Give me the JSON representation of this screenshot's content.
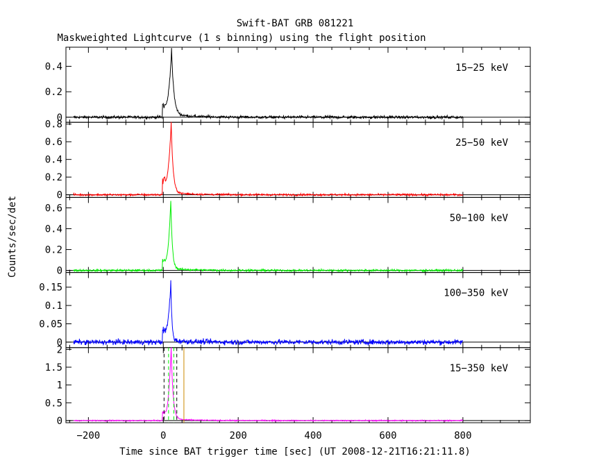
{
  "chart_data": {
    "type": "line",
    "title": "Swift-BAT GRB 081221",
    "subtitle": "Maskweighted Lightcurve (1 s binning) using the flight position",
    "xlabel": "Time since BAT trigger time [sec] (UT 2008-12-21T16:21:11.8)",
    "ylabel": "Counts/sec/det",
    "xlim": [
      -260,
      980
    ],
    "xticks": [
      -200,
      0,
      200,
      400,
      600,
      800
    ],
    "xtick_labels": [
      "−200",
      "0",
      "200",
      "400",
      "600",
      "800"
    ],
    "data_range": [
      -240,
      800
    ],
    "panels": [
      {
        "name": "15−25 keV",
        "color": "#000000",
        "ylim": [
          -0.04,
          0.55
        ],
        "yticks": [
          0,
          0.2,
          0.4
        ],
        "ytick_labels": [
          "0",
          "0.2",
          "0.4"
        ],
        "noise": 0.008,
        "pre_peak": 0.12,
        "peak": 0.52,
        "peak_time": 22,
        "decay": 6,
        "rise": 4,
        "tail": 0.02
      },
      {
        "name": "25−50 keV",
        "color": "#ff0000",
        "ylim": [
          -0.03,
          0.82
        ],
        "yticks": [
          0,
          0.2,
          0.4,
          0.6,
          0.8
        ],
        "ytick_labels": [
          "0",
          "0.2",
          "0.4",
          "0.6",
          "0.8"
        ],
        "noise": 0.008,
        "pre_peak": 0.2,
        "peak": 0.8,
        "peak_time": 21,
        "decay": 5,
        "rise": 4,
        "tail": 0.02
      },
      {
        "name": "50−100 keV",
        "color": "#00ee00",
        "ylim": [
          -0.02,
          0.7
        ],
        "yticks": [
          0,
          0.2,
          0.4,
          0.6
        ],
        "ytick_labels": [
          "0",
          "0.2",
          "0.4",
          "0.6"
        ],
        "noise": 0.007,
        "pre_peak": 0.12,
        "peak": 0.66,
        "peak_time": 20,
        "decay": 4,
        "rise": 3,
        "tail": 0.015
      },
      {
        "name": "100−350 keV",
        "color": "#0000ff",
        "ylim": [
          -0.015,
          0.19
        ],
        "yticks": [
          0,
          0.05,
          0.1,
          0.15
        ],
        "ytick_labels": [
          "0",
          "0.05",
          "0.1",
          "0.15"
        ],
        "noise": 0.005,
        "pre_peak": 0.04,
        "peak": 0.16,
        "peak_time": 20,
        "decay": 3,
        "rise": 3,
        "tail": 0.004
      },
      {
        "name": "15−350 keV",
        "color": "#ff00ff",
        "ylim": [
          -0.06,
          2.05
        ],
        "yticks": [
          0,
          0.5,
          1,
          1.5,
          2
        ],
        "ytick_labels": [
          "0",
          "0.5",
          "1",
          "1.5",
          "2"
        ],
        "noise": 0.012,
        "pre_peak": 0.3,
        "peak": 2.0,
        "peak_time": 21,
        "decay": 5,
        "rise": 4,
        "tail": 0.04
      }
    ],
    "vertical_markers": [
      {
        "x": 2,
        "color": "#000000",
        "dashed": true
      },
      {
        "x": 36,
        "color": "#000000",
        "dashed": true
      },
      {
        "x": 14,
        "color": "#00ee00",
        "dashed": true
      },
      {
        "x": 28,
        "color": "#00ee00",
        "dashed": true
      },
      {
        "x": 55,
        "color": "#cc8800",
        "dashed": false
      }
    ],
    "grid": false,
    "legend": "panel labels at top-right of each panel"
  }
}
